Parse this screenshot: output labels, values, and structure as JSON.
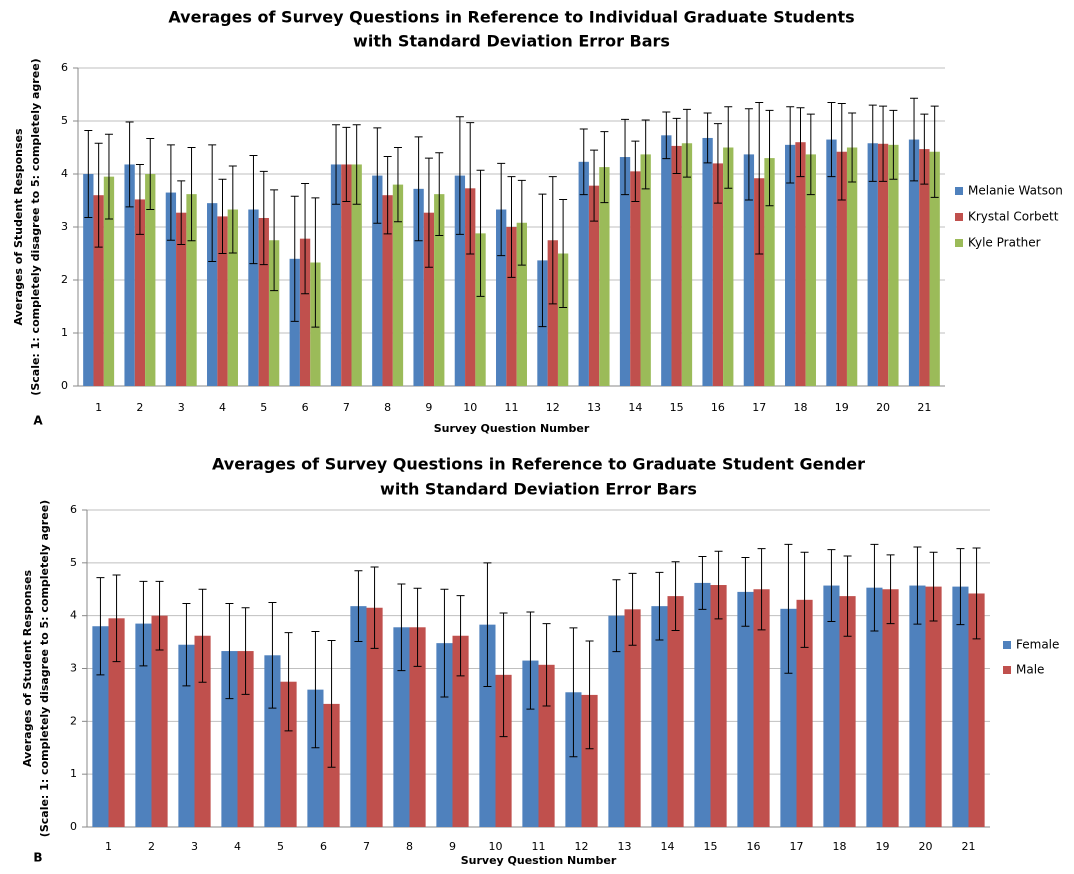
{
  "chart_data": [
    {
      "type": "bar",
      "title": [
        "Averages of Survey Questions in Reference to Individual Graduate Students",
        "with Standard Deviation Error Bars"
      ],
      "ylabel": [
        "Averages of Student Responses",
        "(Scale: 1: completely disagree to 5: completely agree)"
      ],
      "xlabel": "Survey Question Number",
      "panel_label": "A",
      "categories": [
        "1",
        "2",
        "3",
        "4",
        "5",
        "6",
        "7",
        "8",
        "9",
        "10",
        "11",
        "12",
        "13",
        "14",
        "15",
        "16",
        "17",
        "18",
        "19",
        "20",
        "21"
      ],
      "series": [
        {
          "name": "Melanie Watson",
          "color": "#4f81bd",
          "values": [
            4.0,
            4.18,
            3.65,
            3.45,
            3.33,
            2.4,
            4.18,
            3.97,
            3.72,
            3.97,
            3.33,
            2.37,
            4.23,
            4.32,
            4.73,
            4.68,
            4.37,
            4.55,
            4.65,
            4.58,
            4.65
          ],
          "errors": [
            0.82,
            0.8,
            0.9,
            1.1,
            1.02,
            1.18,
            0.75,
            0.9,
            0.98,
            1.11,
            0.87,
            1.25,
            0.62,
            0.71,
            0.44,
            0.47,
            0.86,
            0.72,
            0.7,
            0.72,
            0.78
          ]
        },
        {
          "name": "Krystal Corbett",
          "color": "#c0504d",
          "values": [
            3.6,
            3.52,
            3.27,
            3.2,
            3.17,
            2.78,
            4.18,
            3.6,
            3.27,
            3.73,
            3.0,
            2.75,
            3.78,
            4.05,
            4.53,
            4.2,
            3.92,
            4.6,
            4.42,
            4.57,
            4.47
          ],
          "errors": [
            0.98,
            0.66,
            0.6,
            0.7,
            0.88,
            1.04,
            0.7,
            0.73,
            1.03,
            1.24,
            0.95,
            1.2,
            0.67,
            0.57,
            0.52,
            0.75,
            1.43,
            0.65,
            0.91,
            0.71,
            0.66
          ]
        },
        {
          "name": "Kyle Prather",
          "color": "#9bbb59",
          "values": [
            3.95,
            4.0,
            3.62,
            3.33,
            2.75,
            2.33,
            4.18,
            3.8,
            3.62,
            2.88,
            3.08,
            2.5,
            4.13,
            4.37,
            4.58,
            4.5,
            4.3,
            4.37,
            4.5,
            4.55,
            4.42
          ],
          "errors": [
            0.8,
            0.67,
            0.88,
            0.82,
            0.95,
            1.22,
            0.75,
            0.7,
            0.78,
            1.19,
            0.8,
            1.02,
            0.67,
            0.65,
            0.64,
            0.77,
            0.9,
            0.76,
            0.65,
            0.65,
            0.86
          ]
        }
      ],
      "ylim": [
        0,
        6
      ],
      "yticks": [
        0,
        1,
        2,
        3,
        4,
        5,
        6
      ],
      "grid": true,
      "legend": "right"
    },
    {
      "type": "bar",
      "title": [
        "Averages of Survey Questions in Reference to Graduate Student Gender",
        "with Standard Deviation Error Bars"
      ],
      "ylabel": [
        "Averages of Student Responses",
        "(Scale: 1: completely disagree to 5: completely agree)"
      ],
      "xlabel": "Survey Question Number",
      "panel_label": "B",
      "categories": [
        "1",
        "2",
        "3",
        "4",
        "5",
        "6",
        "7",
        "8",
        "9",
        "10",
        "11",
        "12",
        "13",
        "14",
        "15",
        "16",
        "17",
        "18",
        "19",
        "20",
        "21"
      ],
      "series": [
        {
          "name": "Female",
          "color": "#4f81bd",
          "values": [
            3.8,
            3.85,
            3.45,
            3.33,
            3.25,
            2.6,
            4.18,
            3.78,
            3.48,
            3.83,
            3.15,
            2.55,
            4.0,
            4.18,
            4.62,
            4.45,
            4.13,
            4.57,
            4.53,
            4.57,
            4.55
          ],
          "errors": [
            0.92,
            0.8,
            0.78,
            0.9,
            1.0,
            1.1,
            0.67,
            0.82,
            1.02,
            1.17,
            0.92,
            1.22,
            0.68,
            0.64,
            0.5,
            0.65,
            1.22,
            0.68,
            0.82,
            0.73,
            0.72
          ]
        },
        {
          "name": "Male",
          "color": "#c0504d",
          "values": [
            3.95,
            4.0,
            3.62,
            3.33,
            2.75,
            2.33,
            4.15,
            3.78,
            3.62,
            2.88,
            3.07,
            2.5,
            4.12,
            4.37,
            4.58,
            4.5,
            4.3,
            4.37,
            4.5,
            4.55,
            4.42
          ],
          "errors": [
            0.82,
            0.65,
            0.88,
            0.82,
            0.93,
            1.2,
            0.77,
            0.74,
            0.76,
            1.17,
            0.78,
            1.02,
            0.68,
            0.65,
            0.64,
            0.77,
            0.9,
            0.76,
            0.65,
            0.65,
            0.86
          ]
        }
      ],
      "ylim": [
        0,
        6
      ],
      "yticks": [
        0,
        1,
        2,
        3,
        4,
        5,
        6
      ],
      "grid": true,
      "legend": "right"
    }
  ]
}
